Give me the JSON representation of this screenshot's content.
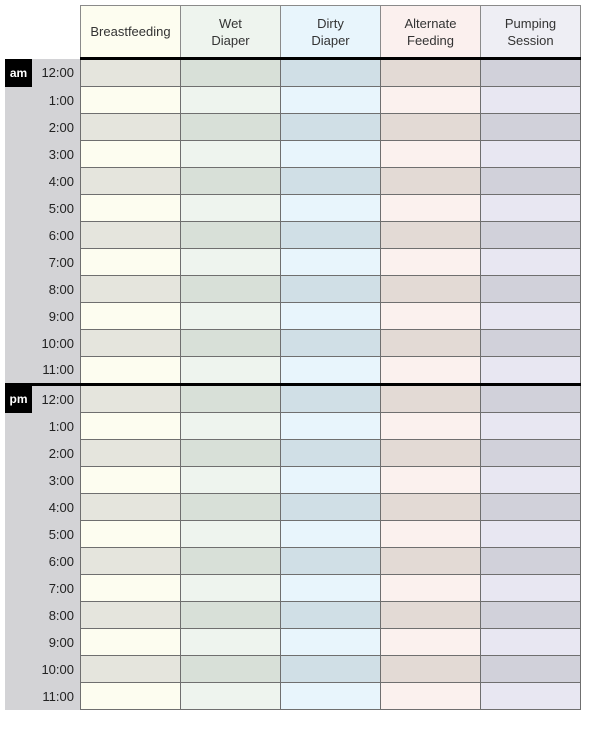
{
  "columns": [
    {
      "label": "Breastfeeding",
      "header_color": "#fdfdf0",
      "light": "#fdfdf0",
      "dark": "#e5e5dd"
    },
    {
      "label": "Wet\nDiaper",
      "header_color": "#eef4ee",
      "light": "#eef4ee",
      "dark": "#d8e0d8"
    },
    {
      "label": "Dirty\nDiaper",
      "header_color": "#e8f5fc",
      "light": "#e8f5fc",
      "dark": "#d0dfe6"
    },
    {
      "label": "Alternate\nFeeding",
      "header_color": "#fbf0ee",
      "light": "#fbf1ee",
      "dark": "#e3dad5"
    },
    {
      "label": "Pumping\nSession",
      "header_color": "#eeeef4",
      "light": "#e8e7f2",
      "dark": "#d1d1da"
    }
  ],
  "periods": [
    {
      "label": "am",
      "times": [
        "12:00",
        "1:00",
        "2:00",
        "3:00",
        "4:00",
        "5:00",
        "6:00",
        "7:00",
        "8:00",
        "9:00",
        "10:00",
        "11:00"
      ]
    },
    {
      "label": "pm",
      "times": [
        "12:00",
        "1:00",
        "2:00",
        "3:00",
        "4:00",
        "5:00",
        "6:00",
        "7:00",
        "8:00",
        "9:00",
        "10:00",
        "11:00"
      ]
    }
  ]
}
